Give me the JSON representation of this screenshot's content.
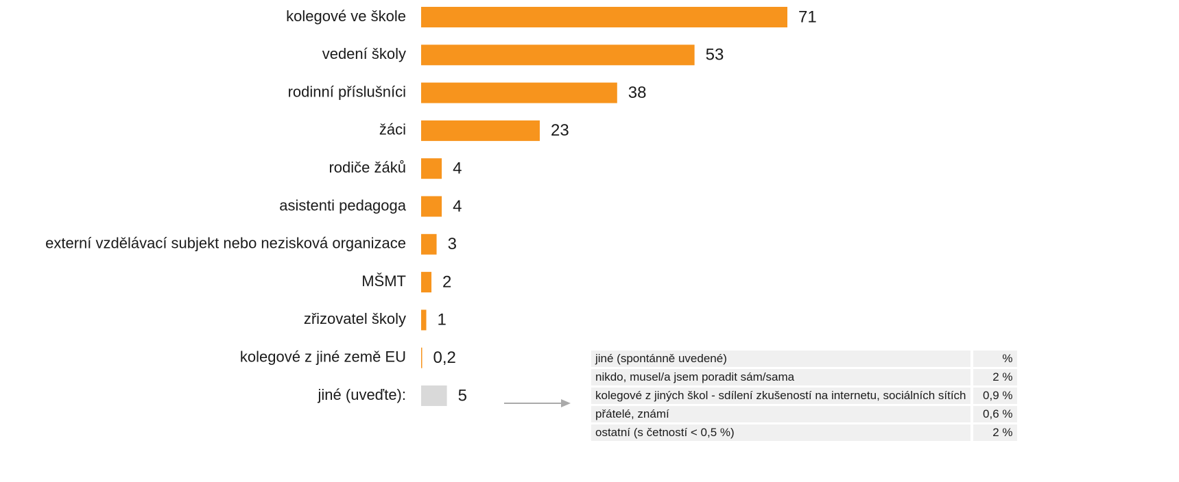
{
  "chart_data": {
    "type": "bar",
    "orientation": "horizontal",
    "categories": [
      "kolegové ve škole",
      "vedení školy",
      "rodinní příslušníci",
      "žáci",
      "rodiče žáků",
      "asistenti pedagoga",
      "externí vzdělávací subjekt nebo nezisková organizace",
      "MŠMT",
      "zřizovatel školy",
      "kolegové z jiné země EU",
      "jiné (uveďte):"
    ],
    "values": [
      71,
      53,
      38,
      23,
      4,
      4,
      3,
      2,
      1,
      0.2,
      5
    ],
    "value_labels": [
      "71",
      "53",
      "38",
      "23",
      "4",
      "4",
      "3",
      "2",
      "1",
      "0,2",
      "5"
    ],
    "colors": [
      "#f7941d",
      "#f7941d",
      "#f7941d",
      "#f7941d",
      "#f7941d",
      "#f7941d",
      "#f7941d",
      "#f7941d",
      "#f7941d",
      "#f7941d",
      "#d9d9d9"
    ]
  },
  "table": {
    "header": [
      "jiné (spontánně uvedené)",
      "%"
    ],
    "rows": [
      [
        "nikdo, musel/a jsem poradit sám/sama",
        "2 %"
      ],
      [
        "kolegové z jiných škol - sdílení zkušeností na internetu, sociálních sítích",
        "0,9 %"
      ],
      [
        "přátelé, známí",
        "0,6 %"
      ],
      [
        "ostatní (s četností < 0,5 %)",
        "2 %"
      ]
    ]
  }
}
